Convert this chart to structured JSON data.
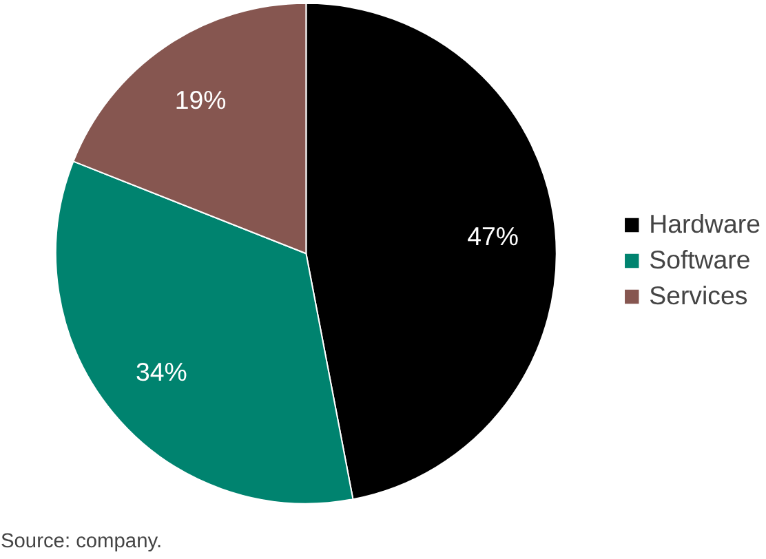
{
  "chart_data": {
    "type": "pie",
    "categories": [
      "Hardware",
      "Software",
      "Services"
    ],
    "values": [
      47,
      34,
      19
    ],
    "colors": [
      "#000000",
      "#00836f",
      "#865650"
    ],
    "value_labels": [
      "47%",
      "34%",
      "19%"
    ],
    "legend": "right",
    "annotations": [
      "Source: company."
    ]
  }
}
